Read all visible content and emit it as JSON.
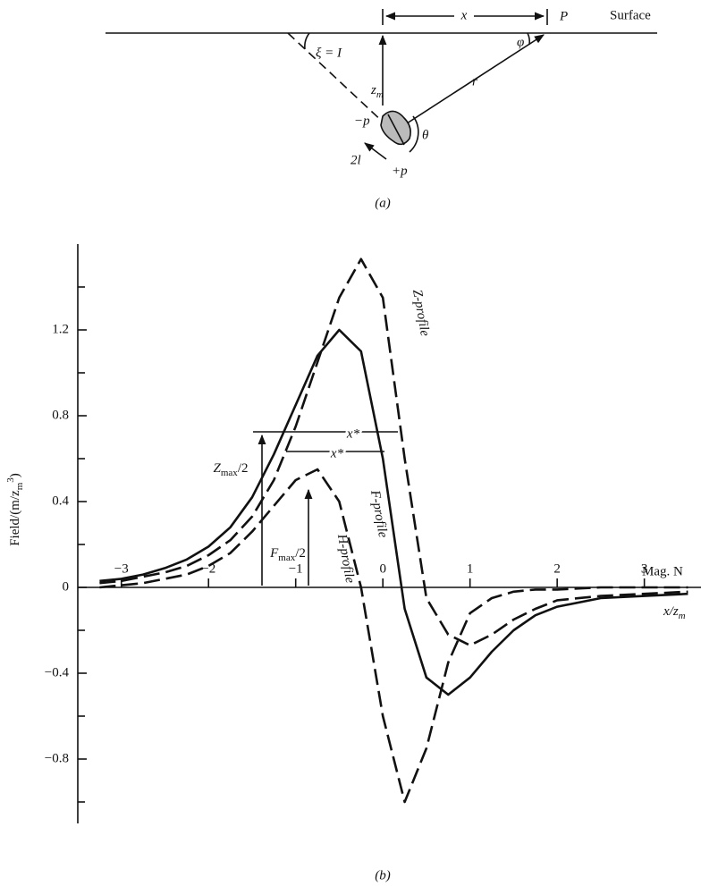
{
  "diagram": {
    "x_label": "x",
    "point": "P",
    "surface": "Surface",
    "phi": "φ",
    "xi": "ξ = I",
    "zm": {
      "base": "z",
      "sub": "m"
    },
    "r": "r",
    "minus_p": "−p",
    "plus_p": "+p",
    "length": "2l",
    "theta": "θ",
    "caption": "(a)"
  },
  "chart_data": {
    "type": "line",
    "caption": "(b)",
    "y_label": {
      "base": "Field/(m/z",
      "sub": "m",
      "sup": "3",
      "rest": ")"
    },
    "x_label": {
      "base": "x/z",
      "sub": "m"
    },
    "right_label": "Mag. N",
    "x": [
      -3.25,
      -3,
      -2.75,
      -2.5,
      -2.25,
      -2,
      -1.75,
      -1.5,
      -1.25,
      -1,
      -0.75,
      -0.5,
      -0.25,
      0,
      0.25,
      0.5,
      0.75,
      1,
      1.25,
      1.5,
      1.75,
      2,
      2.5,
      3,
      3.5
    ],
    "series": [
      {
        "name": "Z-profile",
        "color": "#111111",
        "dash": "long",
        "values": [
          0.02,
          0.03,
          0.05,
          0.07,
          0.1,
          0.15,
          0.22,
          0.33,
          0.5,
          0.75,
          1.05,
          1.35,
          1.53,
          1.35,
          0.6,
          -0.05,
          -0.22,
          -0.27,
          -0.22,
          -0.15,
          -0.1,
          -0.06,
          -0.04,
          -0.03,
          -0.02
        ]
      },
      {
        "name": "F-profile",
        "color": "#111111",
        "dash": "solid",
        "values": [
          0.03,
          0.04,
          0.06,
          0.09,
          0.13,
          0.19,
          0.28,
          0.42,
          0.62,
          0.85,
          1.08,
          1.2,
          1.1,
          0.6,
          -0.1,
          -0.42,
          -0.5,
          -0.42,
          -0.3,
          -0.2,
          -0.13,
          -0.09,
          -0.05,
          -0.04,
          -0.03
        ]
      },
      {
        "name": "H-profile",
        "color": "#111111",
        "dash": "long",
        "values": [
          0,
          0.01,
          0.02,
          0.04,
          0.06,
          0.1,
          0.16,
          0.26,
          0.38,
          0.5,
          0.55,
          0.4,
          0,
          -0.6,
          -1,
          -0.75,
          -0.35,
          -0.12,
          -0.05,
          -0.02,
          -0.01,
          -0.01,
          0,
          0,
          0
        ]
      }
    ],
    "xlim": [
      -3.5,
      3.65
    ],
    "ylim": [
      -1.1,
      1.6
    ],
    "xticks": [
      {
        "value": -3,
        "label": "−3"
      },
      {
        "value": -2,
        "label": "−2"
      },
      {
        "value": -1,
        "label": "−1"
      },
      0,
      1,
      2,
      3
    ],
    "yticks": [
      {
        "value": -0.8,
        "label": "−0.8"
      },
      {
        "value": -0.4,
        "label": "−0.4"
      },
      0,
      0.4,
      0.8,
      1.2
    ],
    "yticks_minor": [
      -1,
      -0.6,
      -0.2,
      0.2,
      0.6,
      1,
      1.4
    ],
    "annotations": {
      "z_half": {
        "base": "Z",
        "sub": "max",
        "rest": "/2"
      },
      "f_half": {
        "base": "F",
        "sub": "max",
        "rest": "/2"
      },
      "z_width": "x*",
      "f_width": "x*"
    }
  }
}
